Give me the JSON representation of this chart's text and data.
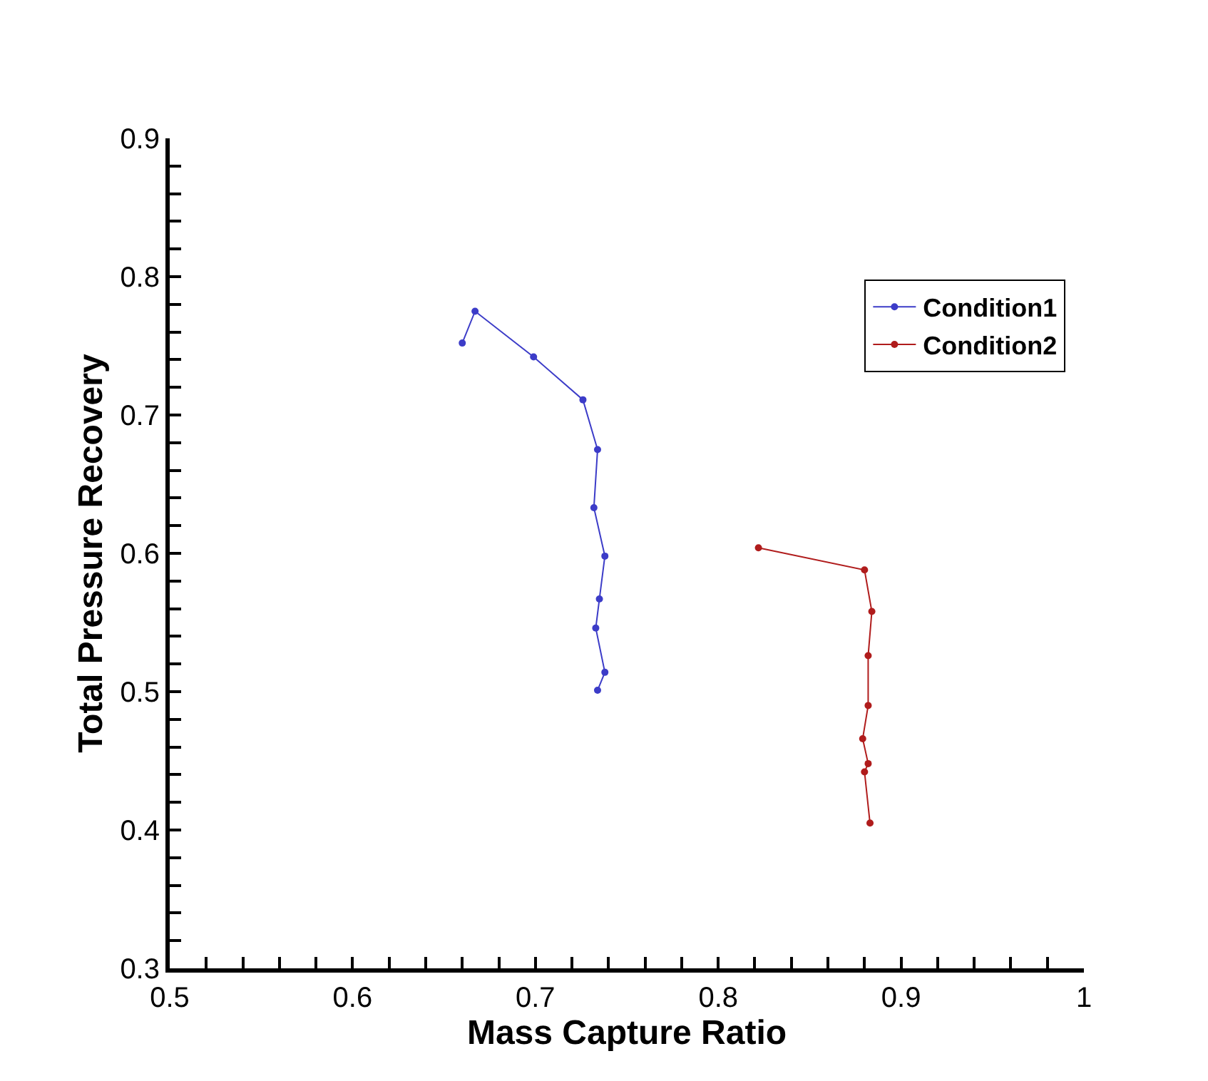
{
  "chart_data": {
    "type": "line",
    "xlabel": "Mass Capture Ratio",
    "ylabel": "Total Pressure Recovery",
    "xlim": [
      0.5,
      1
    ],
    "ylim": [
      0.3,
      0.9
    ],
    "xticks": [
      0.5,
      {
        "value": 0.52,
        "label": null
      },
      {
        "value": 0.54,
        "label": null
      },
      {
        "value": 0.56,
        "label": null
      },
      {
        "value": 0.58,
        "label": null
      },
      0.6,
      {
        "value": 0.62,
        "label": null
      },
      {
        "value": 0.64,
        "label": null
      },
      {
        "value": 0.66,
        "label": null
      },
      {
        "value": 0.68,
        "label": null
      },
      0.7,
      {
        "value": 0.72,
        "label": null
      },
      {
        "value": 0.74,
        "label": null
      },
      {
        "value": 0.76,
        "label": null
      },
      {
        "value": 0.78,
        "label": null
      },
      0.8,
      {
        "value": 0.82,
        "label": null
      },
      {
        "value": 0.84,
        "label": null
      },
      {
        "value": 0.86,
        "label": null
      },
      {
        "value": 0.88,
        "label": null
      },
      0.9,
      {
        "value": 0.92,
        "label": null
      },
      {
        "value": 0.94,
        "label": null
      },
      {
        "value": 0.96,
        "label": null
      },
      {
        "value": 0.98,
        "label": null
      },
      1
    ],
    "yticks": [
      0.3,
      {
        "value": 0.32,
        "label": null
      },
      {
        "value": 0.34,
        "label": null
      },
      {
        "value": 0.36,
        "label": null
      },
      {
        "value": 0.38,
        "label": null
      },
      0.4,
      {
        "value": 0.42,
        "label": null
      },
      {
        "value": 0.44,
        "label": null
      },
      {
        "value": 0.46,
        "label": null
      },
      {
        "value": 0.48,
        "label": null
      },
      0.5,
      {
        "value": 0.52,
        "label": null
      },
      {
        "value": 0.54,
        "label": null
      },
      {
        "value": 0.56,
        "label": null
      },
      {
        "value": 0.58,
        "label": null
      },
      0.6,
      {
        "value": 0.62,
        "label": null
      },
      {
        "value": 0.64,
        "label": null
      },
      {
        "value": 0.66,
        "label": null
      },
      {
        "value": 0.68,
        "label": null
      },
      0.7,
      {
        "value": 0.72,
        "label": null
      },
      {
        "value": 0.74,
        "label": null
      },
      {
        "value": 0.76,
        "label": null
      },
      {
        "value": 0.78,
        "label": null
      },
      0.8,
      {
        "value": 0.82,
        "label": null
      },
      {
        "value": 0.84,
        "label": null
      },
      {
        "value": 0.86,
        "label": null
      },
      {
        "value": 0.88,
        "label": null
      },
      0.9
    ],
    "legend": "top right",
    "marker": "circle",
    "line_style": "solid",
    "series": [
      {
        "name": "Condition1",
        "color": "#3c3cc8",
        "x": [
          0.66,
          0.667,
          0.699,
          0.726,
          0.734,
          0.732,
          0.738,
          0.735,
          0.733,
          0.738,
          0.734
        ],
        "values": [
          0.752,
          0.775,
          0.742,
          0.711,
          0.675,
          0.633,
          0.598,
          0.567,
          0.546,
          0.514,
          0.501
        ]
      },
      {
        "name": "Condition2",
        "color": "#b01c1c",
        "x": [
          0.822,
          0.88,
          0.884,
          0.882,
          0.882,
          0.879,
          0.882,
          0.88,
          0.883
        ],
        "values": [
          0.604,
          0.588,
          0.558,
          0.526,
          0.49,
          0.466,
          0.448,
          0.442,
          0.405
        ]
      }
    ]
  }
}
